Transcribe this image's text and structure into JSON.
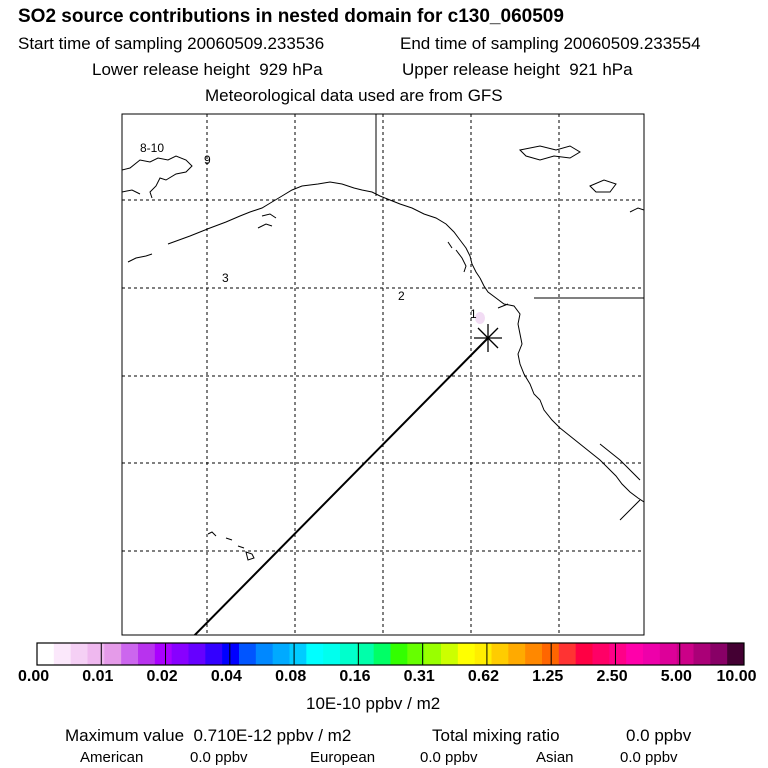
{
  "header": {
    "title": "SO2 source contributions in nested domain for c130_060509",
    "start_time": "Start time of sampling 20060509.233536",
    "end_time": "End time of sampling 20060509.233554",
    "lower_height": "Lower release height  929 hPa",
    "upper_height": "Upper release height  921 hPa",
    "met_data": "Meteorological data used are from GFS"
  },
  "map": {
    "trajectory_labels": [
      "1",
      "2",
      "3",
      "8-10",
      "9"
    ],
    "colors": {
      "outline": "#000000",
      "trajectory": "#000000",
      "plume": "#f2dcf4"
    }
  },
  "colorbar": {
    "ticks": [
      "0.00",
      "0.01",
      "0.02",
      "0.04",
      "0.08",
      "0.16",
      "0.31",
      "0.62",
      "1.25",
      "2.50",
      "5.00",
      "10.00"
    ],
    "unit": "10E-10 ppbv / m2",
    "colors": [
      "#ffffff",
      "#fbe8fb",
      "#f5d0f5",
      "#efb8ef",
      "#e59be9",
      "#cc66ee",
      "#b833ee",
      "#aa00ff",
      "#8800ff",
      "#6600ff",
      "#3300ff",
      "#0000ff",
      "#0055ff",
      "#0088ff",
      "#00aaff",
      "#00ccff",
      "#00ffff",
      "#00ffee",
      "#00ffcc",
      "#00ffaa",
      "#00ff66",
      "#33ff00",
      "#66ff00",
      "#99ff00",
      "#ccff00",
      "#ffff00",
      "#ffee00",
      "#ffcc00",
      "#ffaa00",
      "#ff8800",
      "#ff6600",
      "#ff3333",
      "#ff0044",
      "#ff0066",
      "#ff0088",
      "#ff00aa",
      "#ee00aa",
      "#dd0099",
      "#cc0088",
      "#aa0077",
      "#880066",
      "#440033"
    ]
  },
  "footer": {
    "max_label": "Maximum value  0.710E-12 ppbv / m2",
    "total_label": "Total mixing ratio",
    "total_value": "0.0 ppbv",
    "american_label": "American",
    "american_value": "0.0 ppbv",
    "european_label": "European",
    "european_value": "0.0 ppbv",
    "asian_label": "Asian",
    "asian_value": "0.0 ppbv"
  }
}
